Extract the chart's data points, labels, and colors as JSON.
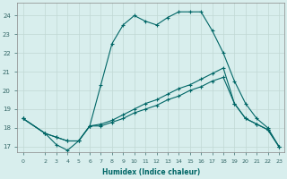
{
  "xlabel": "Humidex (Indice chaleur)",
  "bg_color": "#d8eeed",
  "grid_color": "#c0d8d4",
  "line_color": "#006666",
  "xlim": [
    -0.5,
    23.5
  ],
  "ylim": [
    16.7,
    24.7
  ],
  "yticks": [
    17,
    18,
    19,
    20,
    21,
    22,
    23,
    24
  ],
  "xticks": [
    0,
    2,
    3,
    4,
    5,
    6,
    7,
    8,
    9,
    10,
    11,
    12,
    13,
    14,
    15,
    16,
    17,
    18,
    19,
    20,
    21,
    22,
    23
  ],
  "peak_x": [
    0,
    2,
    3,
    4,
    5,
    6,
    7,
    8,
    9,
    10,
    11,
    12,
    13,
    14,
    15,
    16,
    17,
    18,
    19,
    20,
    21,
    22,
    23
  ],
  "peak_y": [
    18.5,
    17.7,
    17.1,
    16.8,
    17.3,
    18.1,
    20.3,
    22.5,
    23.5,
    24.0,
    23.7,
    23.5,
    23.9,
    24.2,
    24.2,
    24.2,
    23.2,
    22.0,
    20.5,
    19.3,
    18.5,
    18.0,
    17.0
  ],
  "smooth1_x": [
    0,
    2,
    3,
    4,
    5,
    6,
    7,
    8,
    9,
    10,
    11,
    12,
    13,
    14,
    15,
    16,
    17,
    18,
    19,
    20,
    21,
    22,
    23
  ],
  "smooth1_y": [
    18.5,
    17.7,
    17.5,
    17.3,
    17.3,
    18.1,
    18.2,
    18.4,
    18.7,
    19.0,
    19.3,
    19.5,
    19.8,
    20.1,
    20.3,
    20.6,
    20.9,
    21.2,
    19.3,
    18.5,
    18.2,
    17.9,
    17.0
  ],
  "smooth2_x": [
    0,
    2,
    3,
    4,
    5,
    6,
    7,
    8,
    9,
    10,
    11,
    12,
    13,
    14,
    15,
    16,
    17,
    18,
    19,
    20,
    21,
    22,
    23
  ],
  "smooth2_y": [
    18.5,
    17.7,
    17.5,
    17.3,
    17.3,
    18.1,
    18.1,
    18.3,
    18.5,
    18.8,
    19.0,
    19.2,
    19.5,
    19.7,
    20.0,
    20.2,
    20.5,
    20.7,
    19.3,
    18.5,
    18.2,
    17.9,
    17.0
  ]
}
